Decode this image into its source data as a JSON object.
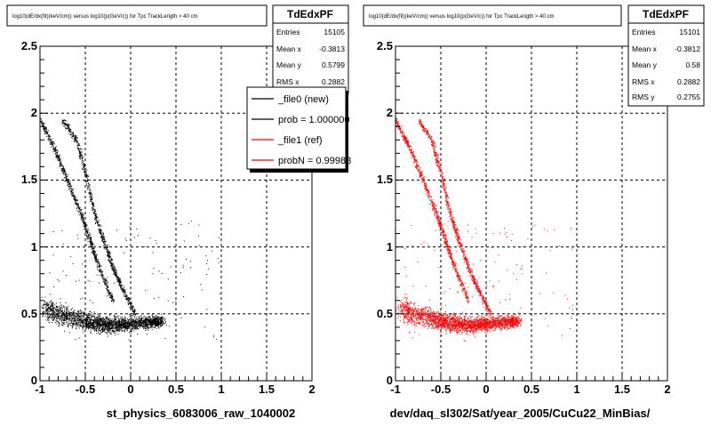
{
  "chart_data": [
    {
      "type": "scatter",
      "title": "log10(dE/dx(fit)(keV/cm)) versus log10(p(GeV/c)) for Tpc TrackLength > 40 cm",
      "xlabel": "st_physics_6083006_raw_1040002",
      "ylabel": "",
      "xlim": [
        -1,
        2
      ],
      "ylim": [
        0,
        2.5
      ],
      "xticks": [
        "-1",
        "-0.5",
        "0",
        "0.5",
        "1",
        "1.5",
        "2"
      ],
      "yticks": [
        "0",
        "0.5",
        "1",
        "1.5",
        "2",
        "2.5"
      ],
      "grid": true,
      "marker_color": "#000000",
      "stats": {
        "name": "TdEdxPF",
        "rows": [
          {
            "label": "Entries",
            "value": "15105"
          },
          {
            "label": "Mean x",
            "value": "-0.3813"
          },
          {
            "label": "Mean y",
            "value": "0.5799"
          },
          {
            "label": "RMS x",
            "value": "0.2882"
          }
        ]
      },
      "legend": {
        "placement": "top-right",
        "entries": [
          {
            "label": "_file0 (new)",
            "color": "#000000"
          },
          {
            "label": "prob = 1.000000",
            "color": "#000000"
          },
          {
            "label": "_file1 (ref)",
            "color": "#ff0000"
          },
          {
            "label": "probN = 0.99983",
            "color": "#ff0000"
          }
        ]
      },
      "bands": [
        {
          "name": "pions",
          "x": [
            -0.95,
            -0.8,
            -0.6,
            -0.45,
            -0.3,
            -0.15,
            0,
            0.2,
            0.35
          ],
          "y": [
            0.55,
            0.5,
            0.47,
            0.44,
            0.42,
            0.42,
            0.43,
            0.44,
            0.45
          ]
        },
        {
          "name": "kaons",
          "x": [
            -1.0,
            -0.85,
            -0.7,
            -0.55,
            -0.45,
            -0.35,
            -0.2
          ],
          "y": [
            1.95,
            1.75,
            1.5,
            1.25,
            1.05,
            0.85,
            0.6
          ]
        },
        {
          "name": "protons",
          "x": [
            -0.75,
            -0.6,
            -0.5,
            -0.4,
            -0.3,
            -0.2,
            -0.1,
            0.05
          ],
          "y": [
            1.95,
            1.8,
            1.55,
            1.25,
            1.05,
            0.85,
            0.7,
            0.5
          ]
        }
      ]
    },
    {
      "type": "scatter",
      "title": "log10(dE/dx(fit)(keV/cm)) versus log10(p(GeV/c)) for Tpc TrackLength > 40 cm",
      "xlabel": "dev/daq_sl302/Sat/year_2005/CuCu22_MinBias/",
      "ylabel": "",
      "xlim": [
        -1,
        2
      ],
      "ylim": [
        0,
        2.5
      ],
      "xticks": [
        "-1",
        "-0.5",
        "0",
        "0.5",
        "1",
        "1.5",
        "2"
      ],
      "yticks": [
        "0",
        "0.5",
        "1",
        "1.5",
        "2",
        "2.5"
      ],
      "grid": true,
      "marker_color": "#ff0000",
      "stats": {
        "name": "TdEdxPF",
        "rows": [
          {
            "label": "Entries",
            "value": "15101"
          },
          {
            "label": "Mean x",
            "value": "-0.3812"
          },
          {
            "label": "Mean y",
            "value": "0.58"
          },
          {
            "label": "RMS x",
            "value": "0.2882"
          },
          {
            "label": "RMS y",
            "value": "0.2755"
          }
        ]
      },
      "bands": [
        {
          "name": "pions",
          "x": [
            -0.95,
            -0.8,
            -0.6,
            -0.45,
            -0.3,
            -0.15,
            0,
            0.2,
            0.35
          ],
          "y": [
            0.55,
            0.5,
            0.47,
            0.44,
            0.42,
            0.42,
            0.43,
            0.44,
            0.45
          ]
        },
        {
          "name": "kaons",
          "x": [
            -1.0,
            -0.85,
            -0.7,
            -0.55,
            -0.45,
            -0.35,
            -0.2
          ],
          "y": [
            1.95,
            1.75,
            1.5,
            1.25,
            1.05,
            0.85,
            0.6
          ]
        },
        {
          "name": "protons",
          "x": [
            -0.75,
            -0.6,
            -0.5,
            -0.4,
            -0.3,
            -0.2,
            -0.1,
            0.05
          ],
          "y": [
            1.95,
            1.8,
            1.55,
            1.25,
            1.05,
            0.85,
            0.7,
            0.5
          ]
        }
      ]
    }
  ]
}
